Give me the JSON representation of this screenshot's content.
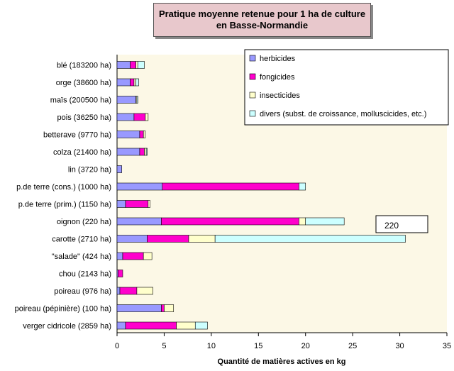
{
  "chart_data": {
    "type": "bar",
    "orientation": "horizontal",
    "stacked": true,
    "title": "Pratique moyenne retenue pour 1 ha de culture",
    "subtitle": "en Basse-Normandie",
    "xlabel": "Quantité de matières actives en kg",
    "ylabel": "",
    "xlim": [
      0,
      35
    ],
    "xticks": [
      0,
      5,
      10,
      15,
      20,
      25,
      30,
      35
    ],
    "grid": false,
    "legend_position": "top-right",
    "categories": [
      "blé (183200 ha)",
      "orge (38600 ha)",
      "maïs (200500 ha)",
      "pois (36250 ha)",
      "betterave (9770 ha)",
      "colza (21400 ha)",
      "lin (3720 ha)",
      "p.de terre (cons.) (1000 ha)",
      "p.de terre (prim.) (1150 ha)",
      "oignon (220 ha)",
      "carotte (2710 ha)",
      "\"salade\" (424 ha)",
      "chou (2143 ha)",
      "poireau (976 ha)",
      "poireau (pépinière) (100 ha)",
      "verger cidricole (2859 ha)"
    ],
    "series": [
      {
        "name": "herbicides",
        "color": "#9999ff",
        "values": [
          1.4,
          1.4,
          2.0,
          1.8,
          2.4,
          2.4,
          0.5,
          4.8,
          0.9,
          4.7,
          3.2,
          0.6,
          0.1,
          0.3,
          4.7,
          0.9
        ]
      },
      {
        "name": "fongicides",
        "color": "#ff00cc",
        "values": [
          0.6,
          0.4,
          0.0,
          1.2,
          0.4,
          0.5,
          0.0,
          14.5,
          2.4,
          14.6,
          4.4,
          2.2,
          0.5,
          1.8,
          0.3,
          5.4
        ]
      },
      {
        "name": "insecticides",
        "color": "#ffffcc",
        "values": [
          0.2,
          0.2,
          0.1,
          0.3,
          0.2,
          0.2,
          0.0,
          0.0,
          0.2,
          0.7,
          2.8,
          0.9,
          0.0,
          1.7,
          1.0,
          2.0
        ]
      },
      {
        "name": "divers (subst. de croissance, molluscicides, etc.)",
        "color": "#ccffff",
        "values": [
          0.7,
          0.3,
          0.1,
          0.0,
          0.0,
          0.1,
          0.0,
          0.7,
          0.0,
          4.1,
          20.2,
          0.0,
          0.0,
          0.0,
          0.0,
          1.3
        ]
      }
    ],
    "annotations": [
      "220"
    ]
  }
}
